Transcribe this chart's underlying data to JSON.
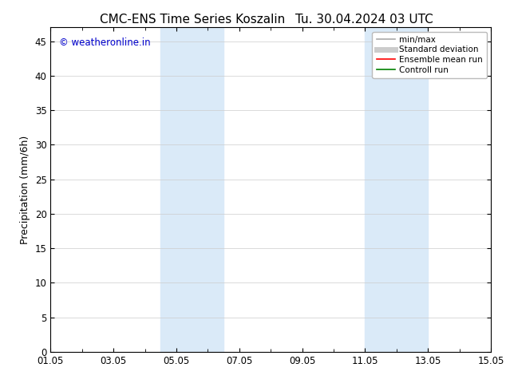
{
  "title_left": "CMC-ENS Time Series Koszalin",
  "title_right": "Tu. 30.04.2024 03 UTC",
  "ylabel": "Precipitation (mm/6h)",
  "xlabel": "",
  "ylim": [
    0,
    47
  ],
  "yticks": [
    0,
    5,
    10,
    15,
    20,
    25,
    30,
    35,
    40,
    45
  ],
  "xlim": [
    0,
    14
  ],
  "xtick_labels": [
    "01.05",
    "03.05",
    "05.05",
    "07.05",
    "09.05",
    "11.05",
    "13.05",
    "15.05"
  ],
  "xtick_positions": [
    0,
    2,
    4,
    6,
    8,
    10,
    12,
    14
  ],
  "shaded_regions": [
    {
      "xstart": 3.5,
      "xend": 5.5,
      "color": "#daeaf8"
    },
    {
      "xstart": 10.0,
      "xend": 12.0,
      "color": "#daeaf8"
    }
  ],
  "background_color": "#ffffff",
  "plot_bg_color": "#ffffff",
  "grid_color": "#cccccc",
  "title_fontsize": 11,
  "tick_fontsize": 8.5,
  "ylabel_fontsize": 9,
  "watermark_text": "© weatheronline.in",
  "watermark_color": "#0000cc",
  "watermark_fontsize": 8.5,
  "legend_entries": [
    {
      "label": "min/max",
      "color": "#aaaaaa",
      "lw": 1.2,
      "style": "solid"
    },
    {
      "label": "Standard deviation",
      "color": "#cccccc",
      "lw": 5,
      "style": "solid"
    },
    {
      "label": "Ensemble mean run",
      "color": "#ff0000",
      "lw": 1.2,
      "style": "solid"
    },
    {
      "label": "Controll run",
      "color": "#008000",
      "lw": 1.2,
      "style": "solid"
    }
  ]
}
